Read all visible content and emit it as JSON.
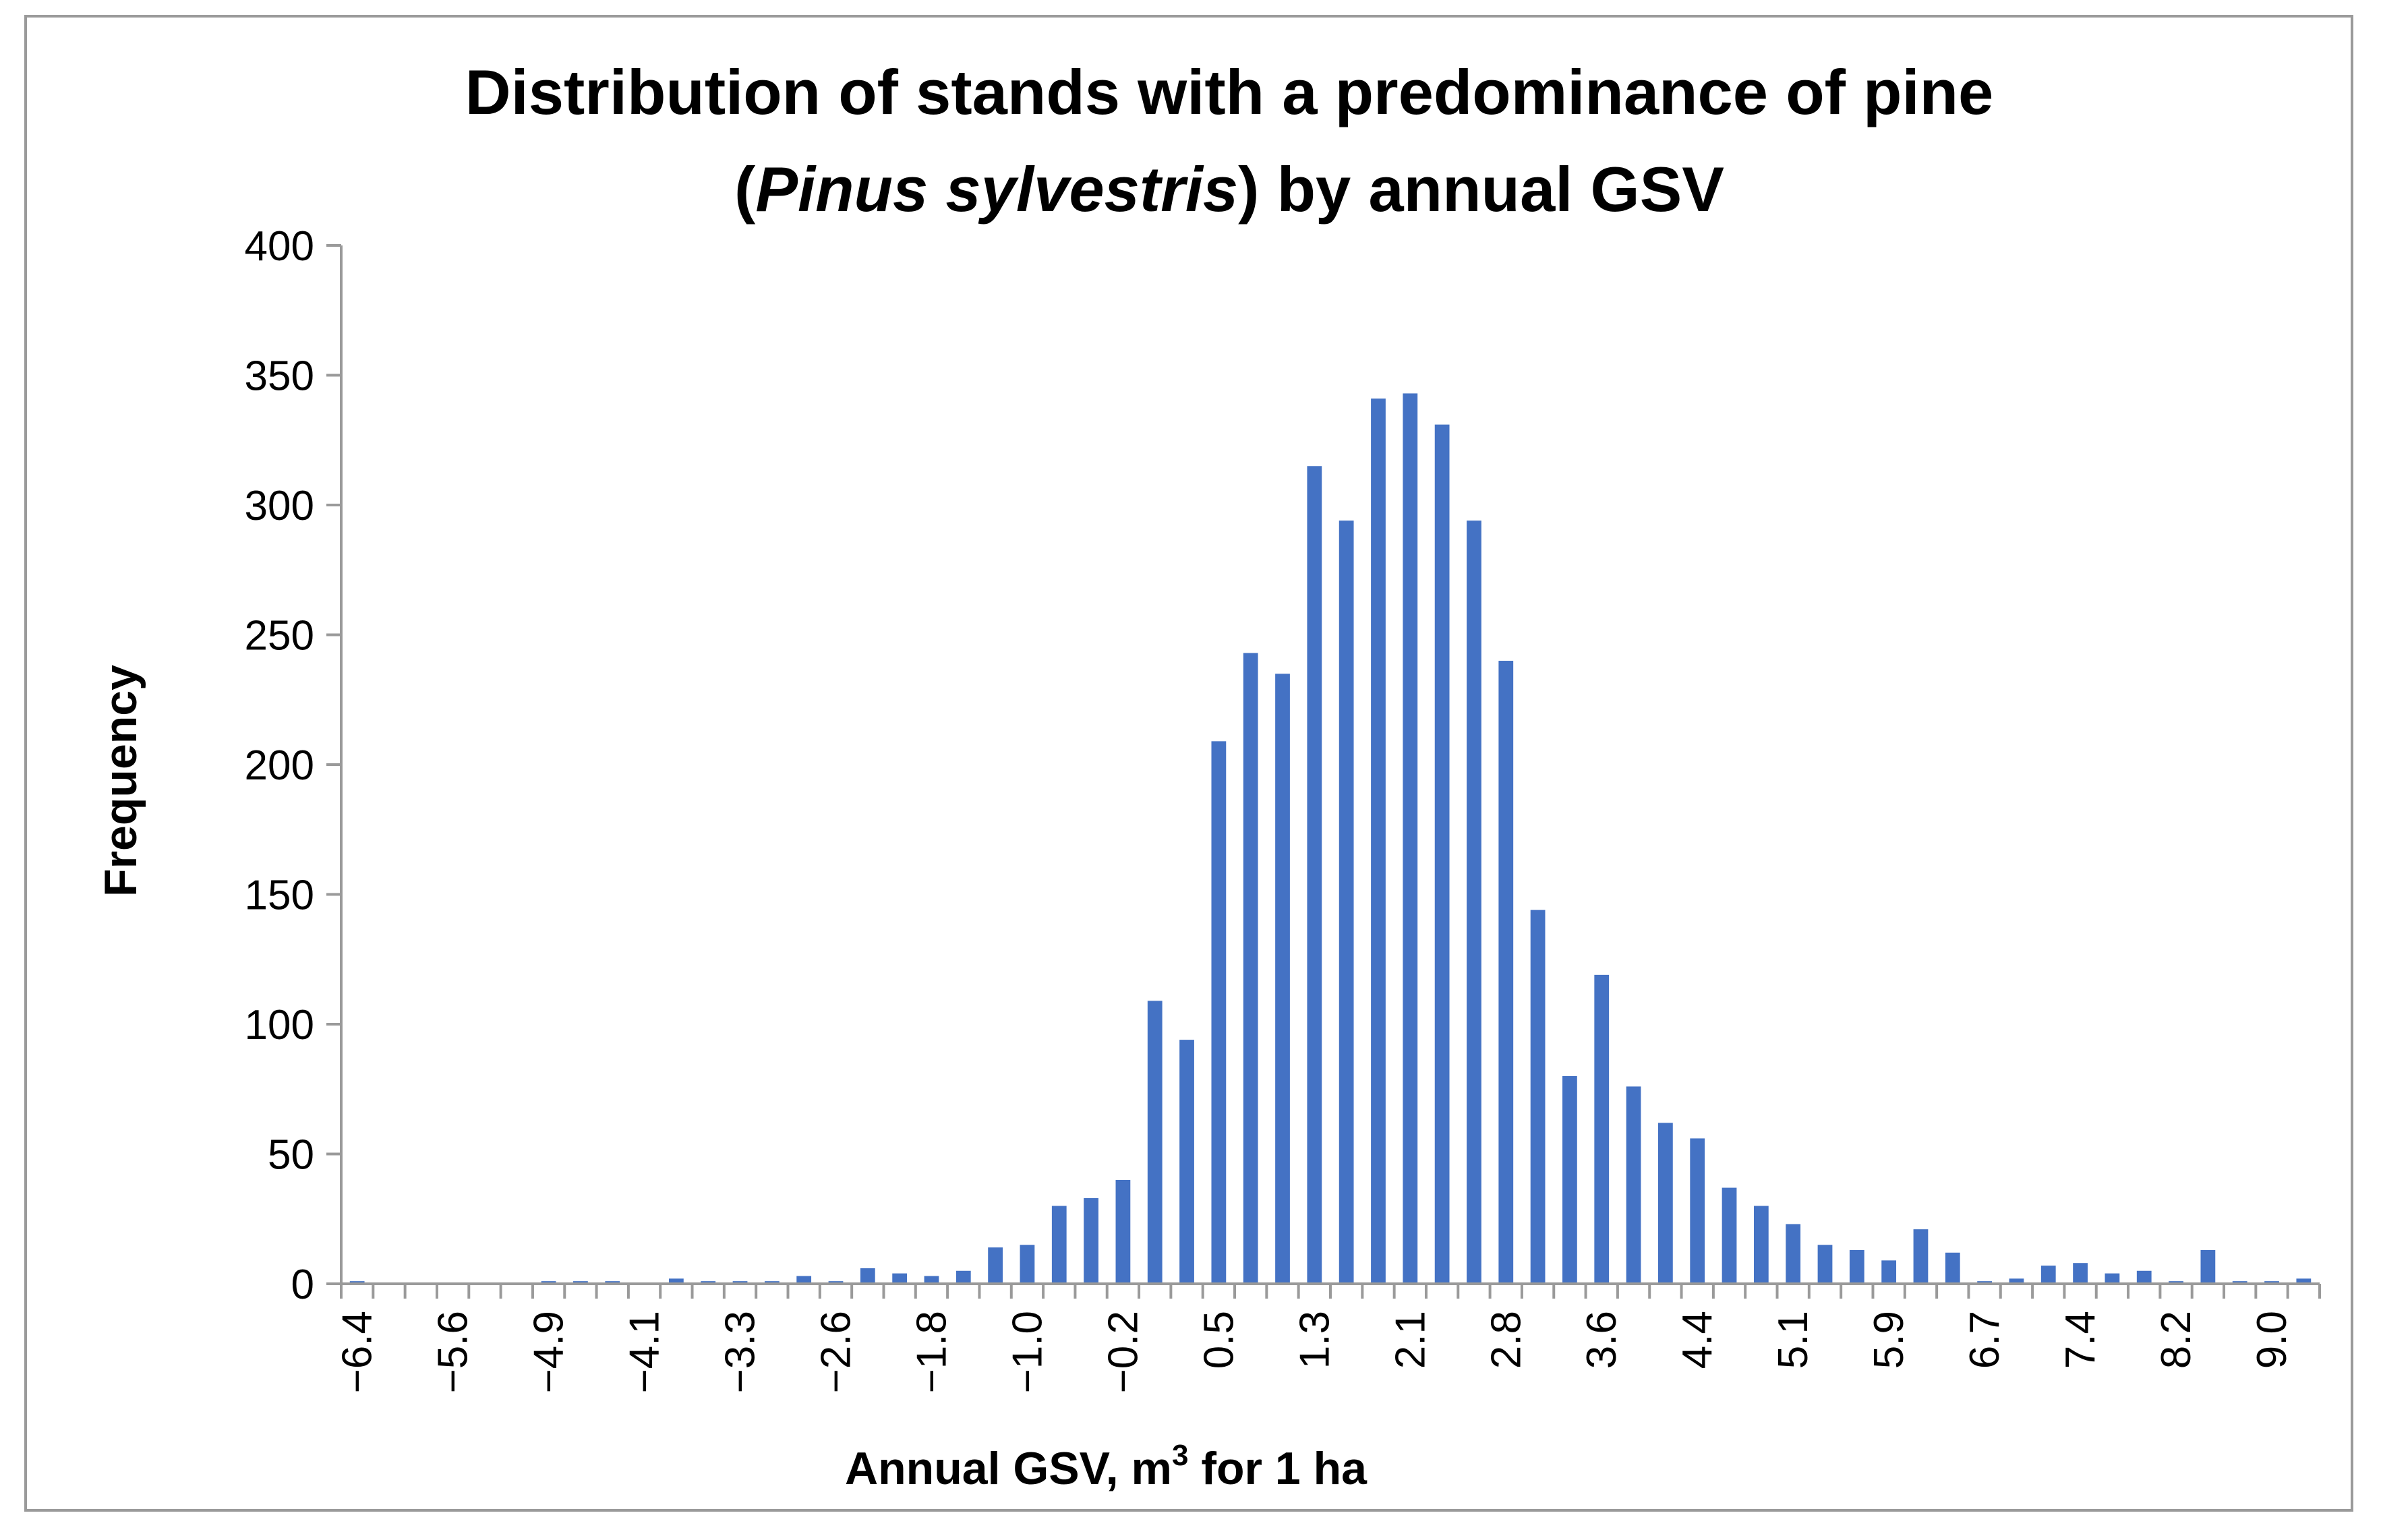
{
  "chart_data": {
    "type": "bar",
    "title_line1": "Distribution of stands with a predominance of pine",
    "title_line2_prefix": "(",
    "title_line2_italic": "Pinus sylvestris",
    "title_line2_suffix": ") by annual GSV",
    "xlabel_prefix": "Annual GSV, m",
    "xlabel_sup": "3",
    "xlabel_suffix": " for 1 ha",
    "ylabel": "Frequency",
    "ylim": [
      0,
      400
    ],
    "yticks": [
      0,
      50,
      100,
      150,
      200,
      250,
      300,
      350,
      400
    ],
    "xtick_labels": [
      "−6.4",
      "−5.6",
      "−4.9",
      "−4.1",
      "−3.3",
      "−2.6",
      "−1.8",
      "−1.0",
      "−0.2",
      "0.5",
      "1.3",
      "2.1",
      "2.8",
      "3.6",
      "4.4",
      "5.1",
      "5.9",
      "6.7",
      "7.4",
      "8.2",
      "9.0"
    ],
    "xtick_every": 3,
    "values": [
      1,
      0,
      0,
      0,
      0,
      0,
      1,
      1,
      1,
      0,
      2,
      1,
      1,
      1,
      3,
      1,
      6,
      4,
      3,
      5,
      14,
      15,
      30,
      33,
      40,
      109,
      94,
      209,
      243,
      235,
      315,
      294,
      341,
      343,
      331,
      294,
      240,
      144,
      80,
      119,
      76,
      62,
      56,
      37,
      30,
      23,
      15,
      13,
      9,
      21,
      12,
      1,
      2,
      7,
      8,
      4,
      5,
      1,
      13,
      1,
      1,
      2
    ],
    "bar_color": "#4472c4",
    "grid": false,
    "legend": "none"
  }
}
